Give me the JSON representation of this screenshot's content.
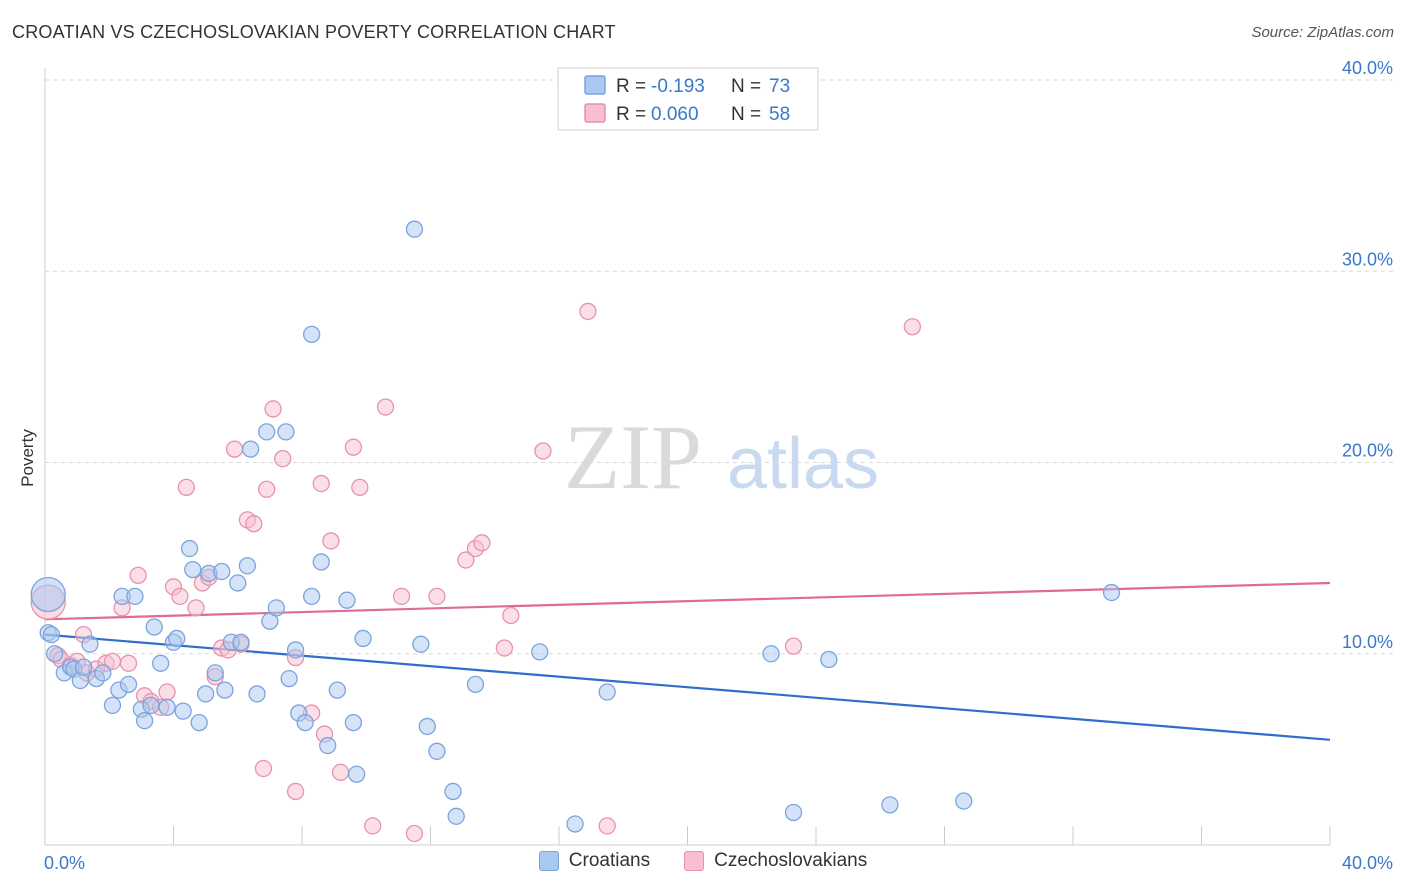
{
  "header": {
    "title": "CROATIAN VS CZECHOSLOVAKIAN POVERTY CORRELATION CHART",
    "source": "Source: ZipAtlas.com"
  },
  "watermark": {
    "zip": "ZIP",
    "atlas": "atlas"
  },
  "legend": {
    "blue": {
      "r_label": "R = ",
      "r_value": "-0.193",
      "n_label": "N = ",
      "n_value": "73"
    },
    "pink": {
      "r_label": "R = ",
      "r_value": "0.060",
      "n_label": "N = ",
      "n_value": "58"
    }
  },
  "colors": {
    "blue_fill": "#aac8f0",
    "blue_stroke": "#7ba4dc",
    "blue_line": "#2f6fcb",
    "pink_fill": "#f7bfd0",
    "pink_stroke": "#e892ad",
    "pink_line": "#e06b94",
    "axis_text": "#3a78c8",
    "grid": "#d9d9d9"
  },
  "chart_data": {
    "type": "scatter",
    "ylabel": "Poverty",
    "xlim": [
      0,
      40
    ],
    "ylim": [
      0,
      40
    ],
    "x_ticks": [
      "0.0%",
      "40.0%"
    ],
    "y_ticks": [
      {
        "value": 10,
        "label": "10.0%"
      },
      {
        "value": 20,
        "label": "20.0%"
      },
      {
        "value": 30,
        "label": "30.0%"
      },
      {
        "value": 40,
        "label": "40.0%"
      }
    ],
    "legend_position": "top-center",
    "grid": true,
    "series": [
      {
        "name": "Croatians",
        "color": "blue",
        "r": -0.193,
        "n": 73,
        "trend": {
          "x": [
            0,
            40
          ],
          "y": [
            11.0,
            5.5
          ]
        },
        "points": [
          [
            0.1,
            13.1
          ],
          [
            0.1,
            11.1
          ],
          [
            0.3,
            10.0
          ],
          [
            0.6,
            9.0
          ],
          [
            0.8,
            9.3
          ],
          [
            0.9,
            9.2
          ],
          [
            1.1,
            8.6
          ],
          [
            1.2,
            9.3
          ],
          [
            1.4,
            10.5
          ],
          [
            1.6,
            8.7
          ],
          [
            1.8,
            9.0
          ],
          [
            2.1,
            7.3
          ],
          [
            2.3,
            8.1
          ],
          [
            2.4,
            13.0
          ],
          [
            2.6,
            8.4
          ],
          [
            2.8,
            13.0
          ],
          [
            3.0,
            7.1
          ],
          [
            3.1,
            6.5
          ],
          [
            3.3,
            7.3
          ],
          [
            3.4,
            11.4
          ],
          [
            3.6,
            9.5
          ],
          [
            3.8,
            7.2
          ],
          [
            4.0,
            10.6
          ],
          [
            4.1,
            10.8
          ],
          [
            4.3,
            7.0
          ],
          [
            4.5,
            15.5
          ],
          [
            4.6,
            14.4
          ],
          [
            4.8,
            6.4
          ],
          [
            5.0,
            7.9
          ],
          [
            5.1,
            14.2
          ],
          [
            5.3,
            9.0
          ],
          [
            5.5,
            14.3
          ],
          [
            5.6,
            8.1
          ],
          [
            5.8,
            10.6
          ],
          [
            6.0,
            13.7
          ],
          [
            6.1,
            10.6
          ],
          [
            6.3,
            14.6
          ],
          [
            6.4,
            20.7
          ],
          [
            6.6,
            7.9
          ],
          [
            6.9,
            21.6
          ],
          [
            7.0,
            11.7
          ],
          [
            7.2,
            12.4
          ],
          [
            7.5,
            21.6
          ],
          [
            7.6,
            8.7
          ],
          [
            7.8,
            10.2
          ],
          [
            7.9,
            6.9
          ],
          [
            8.1,
            6.4
          ],
          [
            8.3,
            13.0
          ],
          [
            8.3,
            26.7
          ],
          [
            8.6,
            14.8
          ],
          [
            8.8,
            5.2
          ],
          [
            9.1,
            8.1
          ],
          [
            9.4,
            12.8
          ],
          [
            9.6,
            6.4
          ],
          [
            9.7,
            3.7
          ],
          [
            9.9,
            10.8
          ],
          [
            11.5,
            32.2
          ],
          [
            11.7,
            10.5
          ],
          [
            11.9,
            6.2
          ],
          [
            12.2,
            4.9
          ],
          [
            12.7,
            2.8
          ],
          [
            12.8,
            1.5
          ],
          [
            13.4,
            8.4
          ],
          [
            15.4,
            10.1
          ],
          [
            16.5,
            1.1
          ],
          [
            17.5,
            8.0
          ],
          [
            22.6,
            10.0
          ],
          [
            23.3,
            1.7
          ],
          [
            24.4,
            9.7
          ],
          [
            26.3,
            2.1
          ],
          [
            28.6,
            2.3
          ],
          [
            33.2,
            13.2
          ],
          [
            0.2,
            11.0
          ]
        ]
      },
      {
        "name": "Czechoslovakians",
        "color": "pink",
        "r": 0.06,
        "n": 58,
        "trend": {
          "x": [
            0,
            40
          ],
          "y": [
            11.8,
            13.7
          ]
        },
        "points": [
          [
            0.1,
            12.7
          ],
          [
            0.4,
            9.9
          ],
          [
            0.5,
            9.7
          ],
          [
            0.8,
            9.4
          ],
          [
            1.0,
            9.6
          ],
          [
            1.2,
            11.0
          ],
          [
            1.3,
            9.0
          ],
          [
            1.6,
            9.2
          ],
          [
            1.9,
            9.5
          ],
          [
            2.1,
            9.6
          ],
          [
            2.4,
            12.4
          ],
          [
            2.6,
            9.5
          ],
          [
            2.9,
            14.1
          ],
          [
            3.1,
            7.8
          ],
          [
            3.3,
            7.5
          ],
          [
            3.6,
            7.2
          ],
          [
            3.8,
            8.0
          ],
          [
            4.0,
            13.5
          ],
          [
            4.2,
            13.0
          ],
          [
            4.4,
            18.7
          ],
          [
            4.7,
            12.4
          ],
          [
            4.9,
            13.7
          ],
          [
            5.1,
            14.0
          ],
          [
            5.3,
            8.8
          ],
          [
            5.5,
            10.3
          ],
          [
            5.7,
            10.2
          ],
          [
            5.9,
            20.7
          ],
          [
            6.1,
            10.5
          ],
          [
            6.3,
            17.0
          ],
          [
            6.5,
            16.8
          ],
          [
            6.8,
            4.0
          ],
          [
            6.9,
            18.6
          ],
          [
            7.1,
            22.8
          ],
          [
            7.4,
            20.2
          ],
          [
            7.8,
            9.8
          ],
          [
            7.8,
            2.8
          ],
          [
            8.3,
            6.9
          ],
          [
            8.6,
            18.9
          ],
          [
            8.7,
            5.8
          ],
          [
            8.9,
            15.9
          ],
          [
            9.2,
            3.8
          ],
          [
            9.6,
            20.8
          ],
          [
            9.8,
            18.7
          ],
          [
            10.2,
            1.0
          ],
          [
            10.6,
            22.9
          ],
          [
            11.1,
            13.0
          ],
          [
            11.5,
            0.6
          ],
          [
            12.2,
            13.0
          ],
          [
            13.1,
            14.9
          ],
          [
            13.4,
            15.5
          ],
          [
            13.6,
            15.8
          ],
          [
            14.3,
            10.3
          ],
          [
            14.5,
            12.0
          ],
          [
            15.5,
            20.6
          ],
          [
            16.9,
            27.9
          ],
          [
            17.5,
            1.0
          ],
          [
            23.3,
            10.4
          ],
          [
            27.0,
            27.1
          ]
        ]
      }
    ]
  },
  "bottom_legend": [
    {
      "label": "Croatians",
      "color": "blue"
    },
    {
      "label": "Czechoslovakians",
      "color": "pink"
    }
  ]
}
